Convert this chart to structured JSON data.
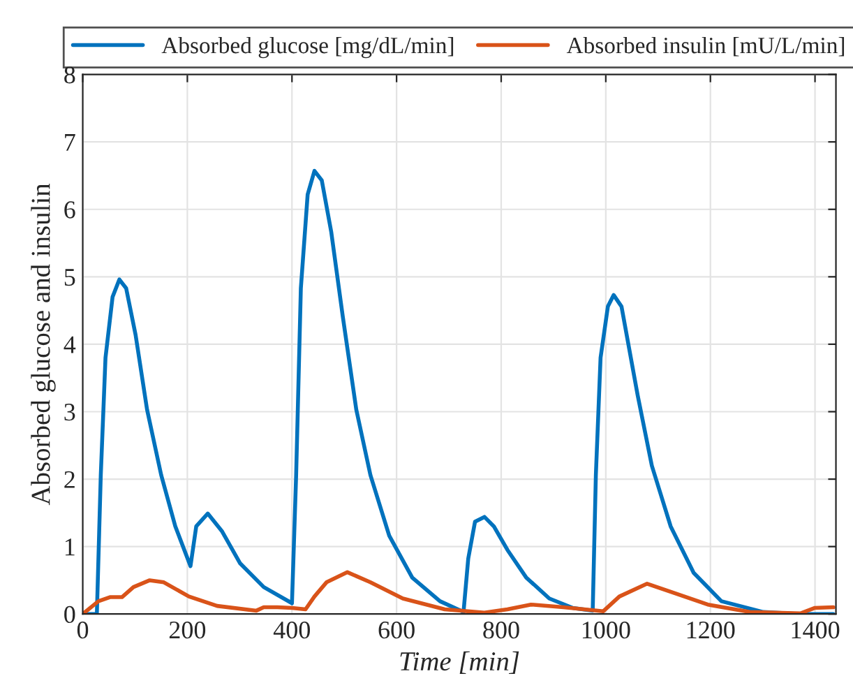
{
  "chart_data": {
    "type": "line",
    "xlabel": "Time [min]",
    "ylabel": "Absorbed glucose and insulin",
    "xlim": [
      0,
      1440
    ],
    "xticks": [
      0,
      200,
      400,
      600,
      800,
      1000,
      1200,
      1400
    ],
    "ylim": [
      0,
      8
    ],
    "yticks": [
      0,
      1,
      2,
      3,
      4,
      5,
      6,
      7,
      8
    ],
    "grid": true,
    "legend": "top",
    "line_style": "solid",
    "series": [
      {
        "name": "Absorbed glucose [mg/dL/min]",
        "color": "#0072bd",
        "x": [
          0,
          27,
          34.5,
          43.5,
          57,
          70,
          83,
          101,
          123,
          150,
          177,
          206,
          217,
          239,
          266,
          301,
          346,
          400,
          408,
          417,
          430,
          443,
          457,
          475,
          497,
          523,
          550,
          586,
          630,
          683,
          728,
          737,
          750,
          768,
          786,
          812,
          848,
          892,
          937,
          975,
          981,
          990,
          1004,
          1015,
          1030,
          1061,
          1088,
          1124,
          1168,
          1221,
          1301,
          1372,
          1435
        ],
        "values": [
          0,
          0,
          2.06,
          3.8,
          4.7,
          4.96,
          4.83,
          4.14,
          3.03,
          2.06,
          1.3,
          0.71,
          1.3,
          1.49,
          1.23,
          0.75,
          0.4,
          0.16,
          2.06,
          4.83,
          6.22,
          6.57,
          6.43,
          5.67,
          4.42,
          3.03,
          2.06,
          1.16,
          0.54,
          0.19,
          0.03,
          0.82,
          1.37,
          1.44,
          1.3,
          0.95,
          0.54,
          0.23,
          0.09,
          0.05,
          2.06,
          3.8,
          4.56,
          4.73,
          4.56,
          3.24,
          2.2,
          1.3,
          0.61,
          0.19,
          0.03,
          0,
          0
        ]
      },
      {
        "name": "Absorbed insulin [mU/L/min]",
        "color": "#d95319",
        "x": [
          0,
          30,
          52,
          75,
          97,
          128,
          155,
          203,
          257,
          332,
          346,
          372,
          400,
          426,
          443,
          466,
          506,
          550,
          612,
          692,
          768,
          812,
          857,
          919,
          995,
          1026,
          1079,
          1124,
          1195,
          1275,
          1372,
          1399,
          1435
        ],
        "values": [
          0,
          0.19,
          0.25,
          0.25,
          0.4,
          0.5,
          0.47,
          0.26,
          0.12,
          0.05,
          0.1,
          0.1,
          0.09,
          0.07,
          0.26,
          0.47,
          0.62,
          0.47,
          0.23,
          0.07,
          0.02,
          0.07,
          0.14,
          0.1,
          0.04,
          0.26,
          0.45,
          0.33,
          0.14,
          0.03,
          0.01,
          0.09,
          0.1
        ]
      }
    ]
  }
}
